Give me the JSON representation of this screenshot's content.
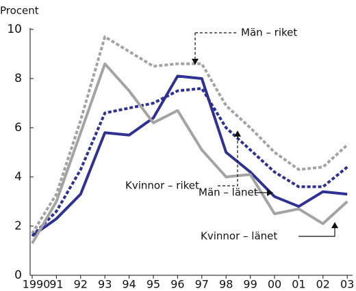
{
  "chart_data": {
    "type": "line",
    "y_label": "Procent",
    "categories": [
      "1990",
      "91",
      "92",
      "93",
      "94",
      "95",
      "96",
      "97",
      "98",
      "99",
      "00",
      "01",
      "02",
      "03"
    ],
    "series": [
      {
        "name": "Män – riket",
        "color": "#a3a3a3",
        "dash": true,
        "values": [
          1.7,
          3.3,
          6.3,
          9.7,
          9.1,
          8.5,
          8.6,
          8.6,
          6.9,
          6.0,
          5.0,
          4.3,
          4.4,
          5.3
        ]
      },
      {
        "name": "Kvinnor – riket",
        "color": "#2e3192",
        "dash": true,
        "values": [
          1.6,
          2.6,
          4.3,
          6.6,
          6.8,
          7.0,
          7.5,
          7.6,
          6.0,
          5.1,
          4.2,
          3.6,
          3.6,
          4.4
        ]
      },
      {
        "name": "Män – länet",
        "color": "#2e3192",
        "dash": false,
        "values": [
          1.6,
          2.3,
          3.3,
          5.8,
          5.7,
          6.4,
          8.1,
          8.0,
          5.0,
          4.2,
          3.2,
          2.8,
          3.4,
          3.3
        ]
      },
      {
        "name": "Kvinnor – länet",
        "color": "#a3a3a3",
        "dash": false,
        "values": [
          1.3,
          3.0,
          5.8,
          8.6,
          7.5,
          6.2,
          6.7,
          5.1,
          4.0,
          4.1,
          2.5,
          2.7,
          2.1,
          3.0
        ]
      }
    ],
    "ylim": [
      0,
      10
    ],
    "yticks": [
      0,
      2,
      4,
      6,
      8,
      10
    ]
  }
}
